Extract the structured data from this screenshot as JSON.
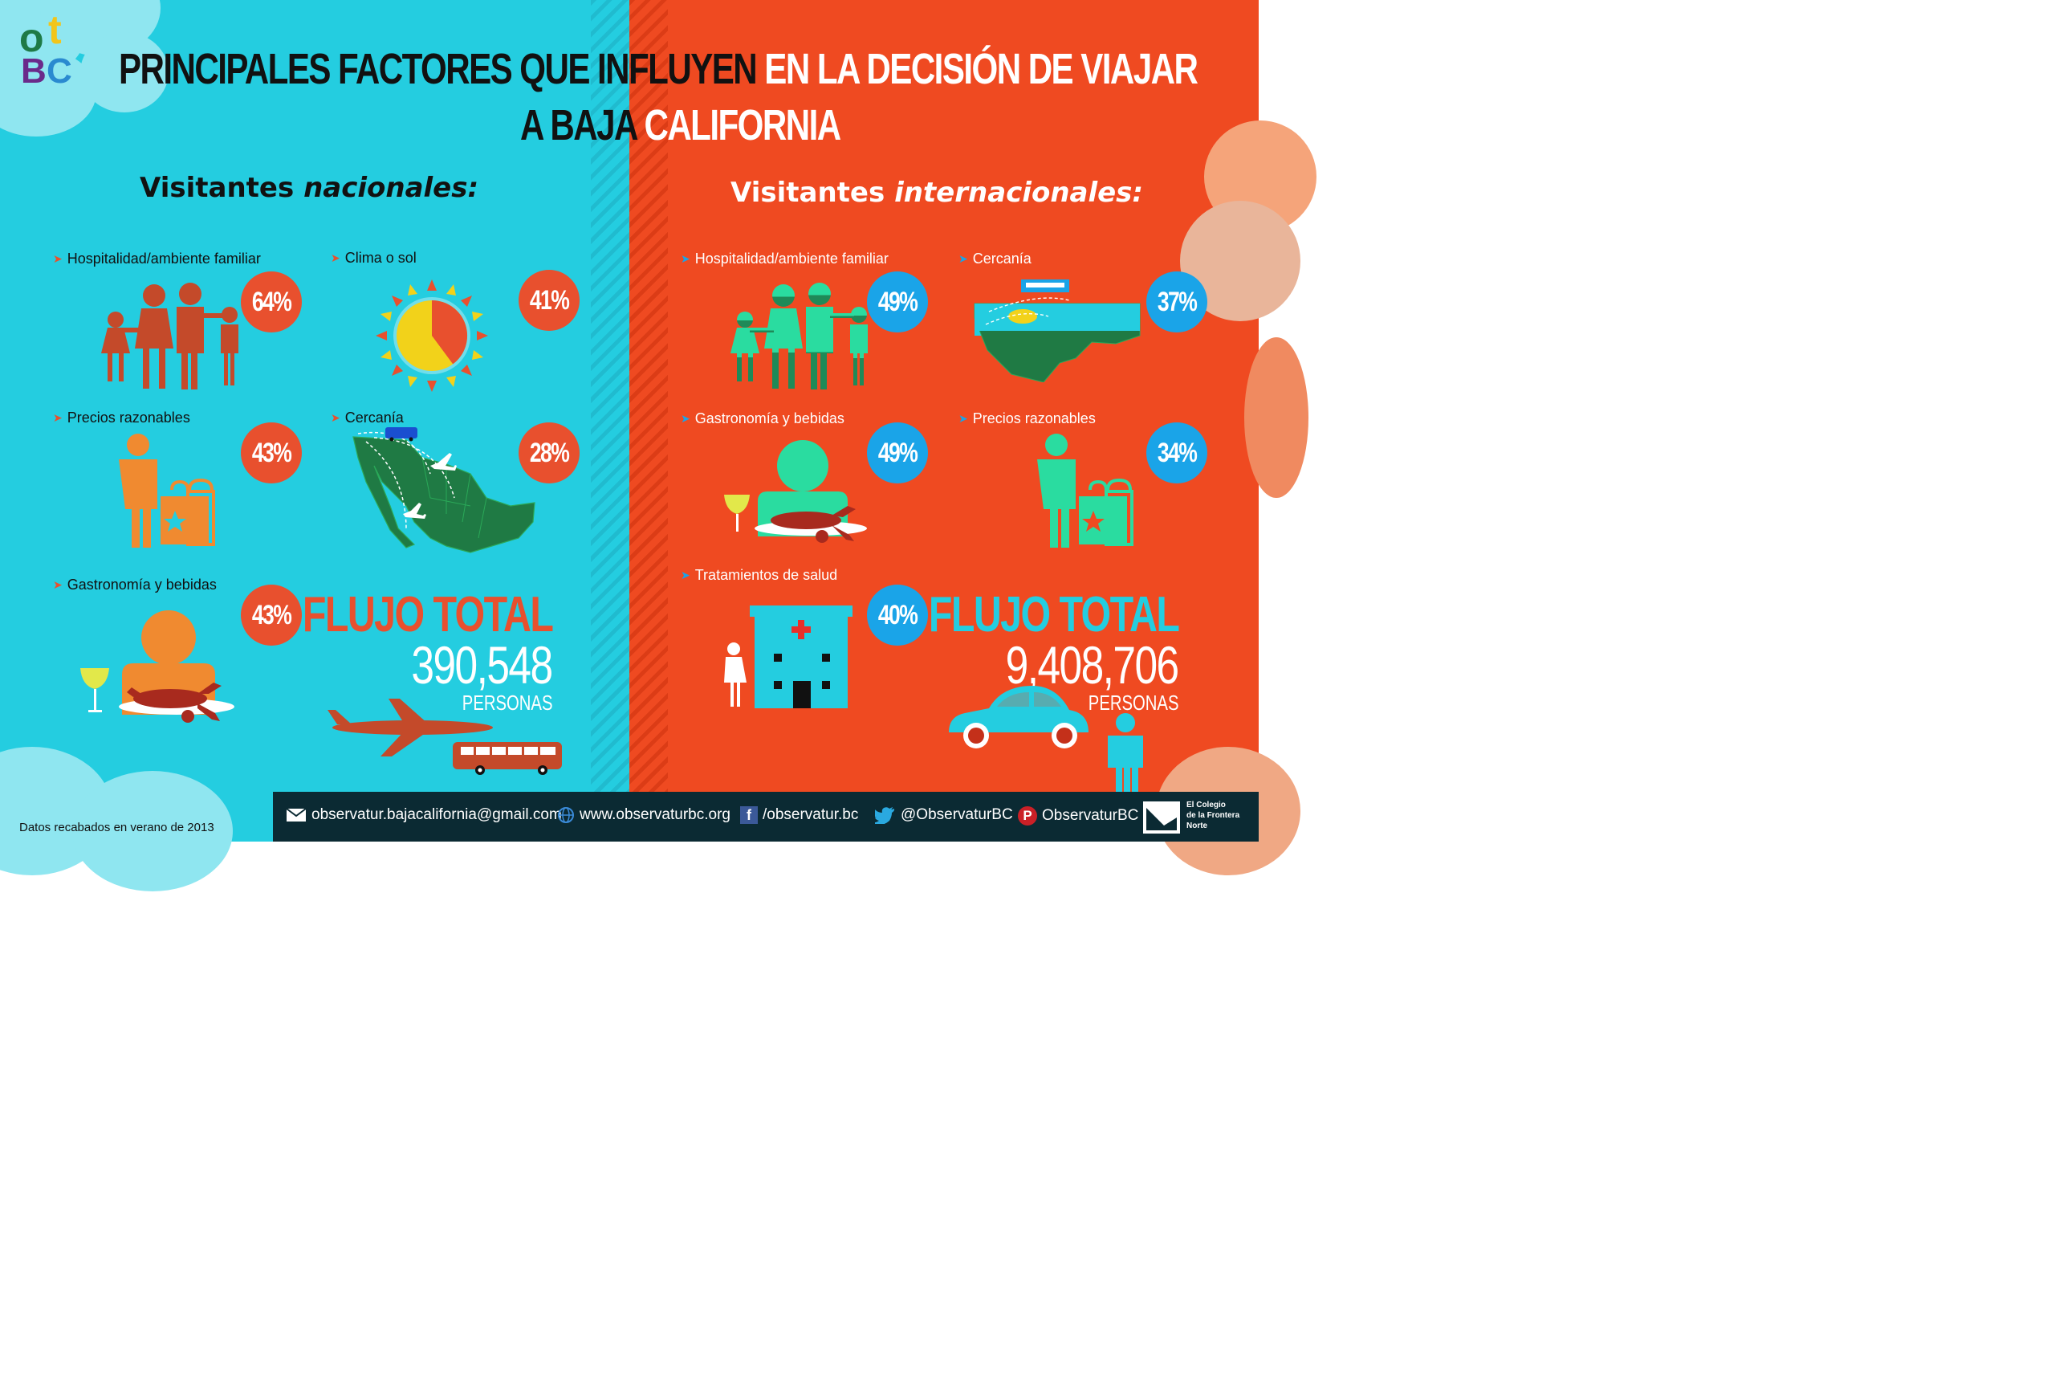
{
  "title": {
    "part1": "PRINCIPALES FACTORES QUE INFLUYEN",
    "part2": "EN LA DECISIÓN DE VIAJAR",
    "line2a": "A BAJA",
    "line2b": "CALIFORNIA"
  },
  "logo": {
    "o": "o",
    "t": "t",
    "b": "B",
    "c": "C"
  },
  "nacionales": {
    "heading_prefix": "Visitantes ",
    "heading_em": "nacionales:",
    "items": [
      {
        "label": "Hospitalidad/ambiente familiar",
        "value": "64%"
      },
      {
        "label": "Clima o sol",
        "value": "41%"
      },
      {
        "label": "Precios razonables",
        "value": "43%"
      },
      {
        "label": "Cercanía",
        "value": "28%"
      },
      {
        "label": "Gastronomía y bebidas",
        "value": "43%"
      }
    ],
    "flujo_label": "FLUJO TOTAL",
    "flujo_value": "390,548",
    "flujo_unit": "PERSONAS"
  },
  "internacionales": {
    "heading_prefix": "Visitantes ",
    "heading_em": "internacionales:",
    "items": [
      {
        "label": "Hospitalidad/ambiente familiar",
        "value": "49%"
      },
      {
        "label": "Cercanía",
        "value": "37%"
      },
      {
        "label": "Gastronomía y bebidas",
        "value": "49%"
      },
      {
        "label": "Precios razonables",
        "value": "34%"
      },
      {
        "label": "Tratamientos de salud",
        "value": "40%"
      }
    ],
    "flujo_label": "FLUJO TOTAL",
    "flujo_value": "9,408,706",
    "flujo_unit": "PERSONAS"
  },
  "footer": {
    "note": "Datos recabados en verano de 2013",
    "email": "observatur.bajacalifornia@gmail.com",
    "web": "www.observaturbc.org",
    "facebook": "/observatur.bc",
    "twitter": "@ObservaturBC",
    "pinterest": "ObservaturBC",
    "colef": [
      "El Colegio",
      "de la Frontera",
      "Norte"
    ]
  },
  "colors": {
    "left_bg": "#24cde0",
    "right_bg": "#ef4a21",
    "red_circle": "#e8502e",
    "blue_circle": "#1aa4e8",
    "footer_bg": "#0b2a33"
  }
}
